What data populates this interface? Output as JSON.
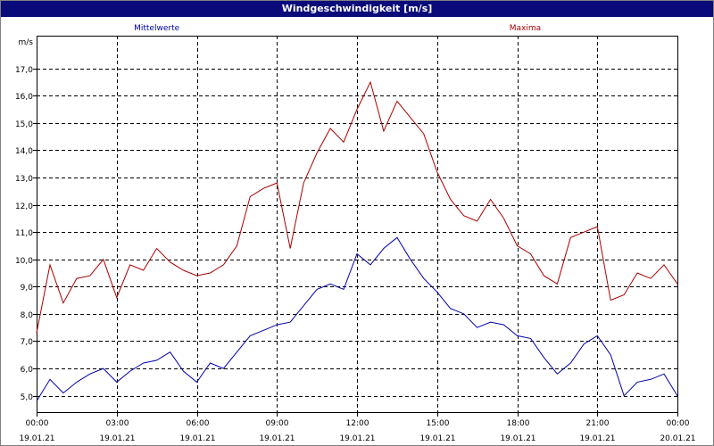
{
  "window": {
    "title": "Windgeschwindigkeit [m/s]"
  },
  "chart_data": {
    "type": "line",
    "ylabel": "m/s",
    "ylim": [
      4.4,
      18.2
    ],
    "yticks": [
      5.0,
      6.0,
      7.0,
      8.0,
      9.0,
      10.0,
      11.0,
      12.0,
      13.0,
      14.0,
      15.0,
      16.0,
      17.0
    ],
    "ytick_labels": [
      "5,0",
      "6,0",
      "7,0",
      "8,0",
      "9,0",
      "10,0",
      "11,0",
      "12,0",
      "13,0",
      "14,0",
      "15,0",
      "16,0",
      "17,0"
    ],
    "xlim": [
      0,
      24
    ],
    "xticks": [
      {
        "x": 0,
        "time": "00:00",
        "date": "19.01.21"
      },
      {
        "x": 3,
        "time": "03:00",
        "date": "19.01.21"
      },
      {
        "x": 6,
        "time": "06:00",
        "date": "19.01.21"
      },
      {
        "x": 9,
        "time": "09:00",
        "date": "19.01.21"
      },
      {
        "x": 12,
        "time": "12:00",
        "date": "19.01.21"
      },
      {
        "x": 15,
        "time": "15:00",
        "date": "19.01.21"
      },
      {
        "x": 18,
        "time": "18:00",
        "date": "19.01.21"
      },
      {
        "x": 21,
        "time": "21:00",
        "date": "19.01.21"
      },
      {
        "x": 24,
        "time": "00:00",
        "date": "20.01.21"
      }
    ],
    "grid": true,
    "legend": "top",
    "series": [
      {
        "name": "Mittelwerte",
        "color": "#0000aa",
        "x": [
          0,
          0.5,
          1,
          1.5,
          2,
          2.5,
          3,
          3.5,
          4,
          4.5,
          5,
          5.5,
          6,
          6.5,
          7,
          7.5,
          8,
          8.5,
          9,
          9.5,
          10,
          10.5,
          11,
          11.5,
          12,
          12.5,
          13,
          13.5,
          14,
          14.5,
          15,
          15.5,
          16,
          16.5,
          17,
          17.5,
          18,
          18.5,
          19,
          19.5,
          20,
          20.5,
          21,
          21.5,
          22,
          22.5,
          23,
          23.5,
          24
        ],
        "values": [
          4.8,
          5.6,
          5.1,
          5.5,
          5.8,
          6.0,
          5.5,
          5.9,
          6.2,
          6.3,
          6.6,
          5.9,
          5.5,
          6.2,
          6.0,
          6.6,
          7.2,
          7.4,
          7.6,
          7.7,
          8.3,
          8.9,
          9.1,
          8.9,
          10.2,
          9.8,
          10.4,
          10.8,
          10.0,
          9.3,
          8.8,
          8.2,
          8.0,
          7.5,
          7.7,
          7.6,
          7.2,
          7.1,
          6.4,
          5.8,
          6.2,
          6.9,
          7.2,
          6.5,
          5.0,
          5.5,
          5.6,
          5.8,
          5.0
        ]
      },
      {
        "name": "Maxima",
        "color": "#aa0000",
        "x": [
          0,
          0.5,
          1,
          1.5,
          2,
          2.5,
          3,
          3.5,
          4,
          4.5,
          5,
          5.5,
          6,
          6.5,
          7,
          7.5,
          8,
          8.5,
          9,
          9.5,
          10,
          10.5,
          11,
          11.5,
          12,
          12.5,
          13,
          13.5,
          14,
          14.5,
          15,
          15.5,
          16,
          16.5,
          17,
          17.5,
          18,
          18.5,
          19,
          19.5,
          20,
          20.5,
          21,
          21.5,
          22,
          22.5,
          23,
          23.5,
          24
        ],
        "values": [
          7.3,
          9.8,
          8.4,
          9.3,
          9.4,
          10.0,
          8.6,
          9.8,
          9.6,
          10.4,
          9.9,
          9.6,
          9.4,
          9.5,
          9.8,
          10.5,
          12.3,
          12.6,
          12.8,
          10.4,
          12.8,
          13.9,
          14.8,
          14.3,
          15.5,
          16.5,
          14.7,
          15.8,
          15.2,
          14.6,
          13.2,
          12.2,
          11.6,
          11.4,
          12.2,
          11.5,
          10.5,
          10.2,
          9.4,
          9.1,
          10.8,
          11.0,
          11.2,
          8.5,
          8.7,
          9.5,
          9.3,
          9.8,
          9.1
        ]
      }
    ]
  }
}
